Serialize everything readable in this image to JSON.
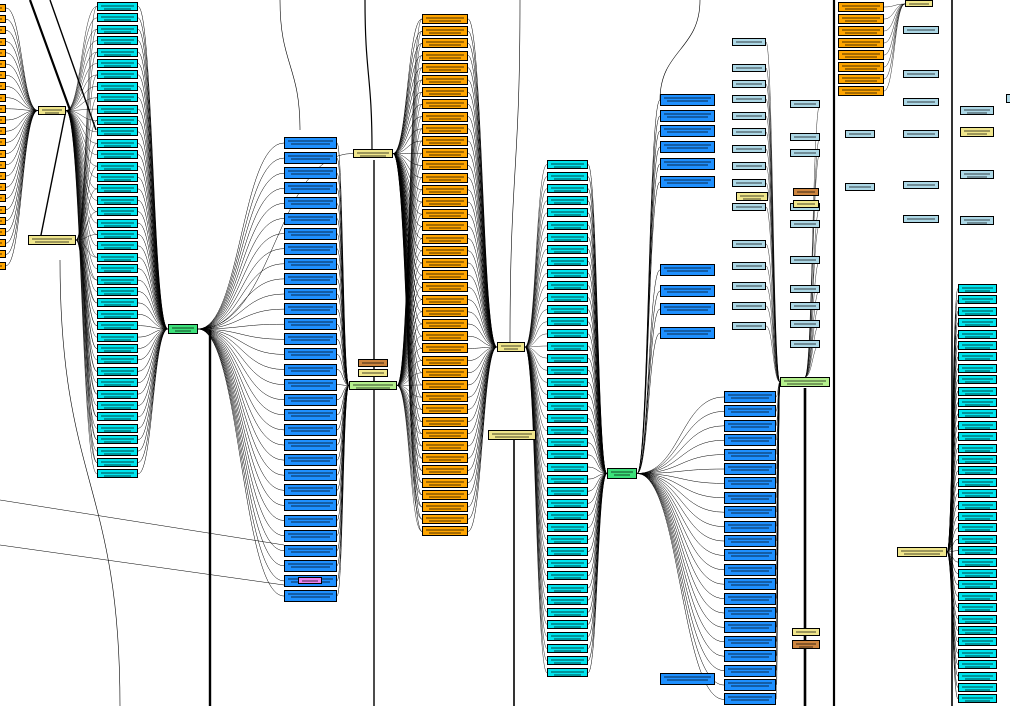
{
  "diagram": {
    "title": "",
    "colors": {
      "orange": "#ffa500",
      "cyan": "#00e5ee",
      "blue": "#1e90ff",
      "khaki": "#f0e68c",
      "green": "#3ce07a",
      "lime": "#b4f08c",
      "light": "#add8e6",
      "brown": "#cd853f",
      "violet": "#ee82ee",
      "edge": "#000000"
    },
    "node_types": {
      "kernel_op": "orange",
      "tensor_view": "cyan",
      "submodule_call": "blue",
      "concat_hub": "khaki",
      "main_hub": "green",
      "aux_hub": "lime",
      "weight": "light",
      "state": "brown",
      "marker": "violet"
    },
    "labels_legible": false
  }
}
